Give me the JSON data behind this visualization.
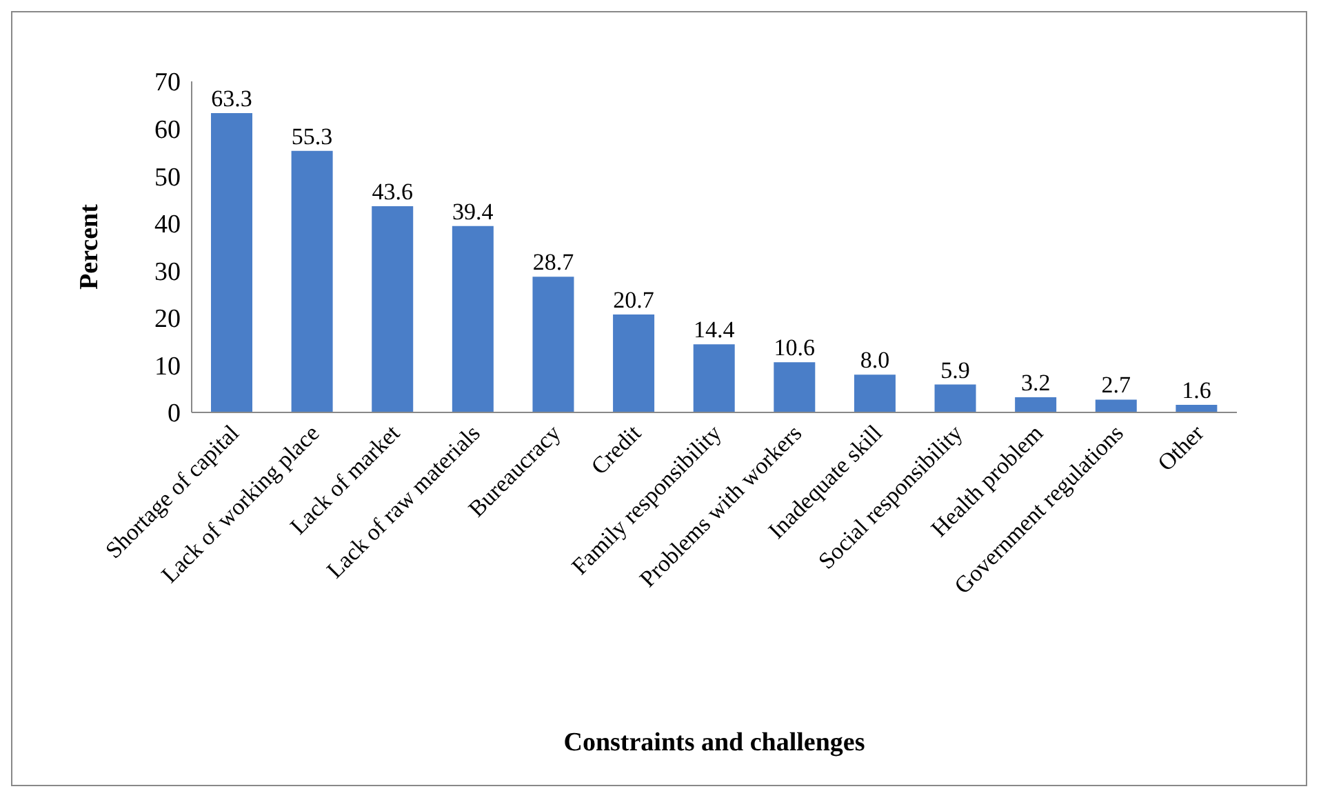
{
  "chart_data": {
    "type": "bar",
    "xlabel": "Constraints and challenges",
    "ylabel": "Percent",
    "categories": [
      "Shortage of capital",
      "Lack of working place",
      "Lack of market",
      "Lack of raw materials",
      "Bureaucracy",
      "Credit",
      "Family responsibility",
      "Problems with workers",
      "Inadequate skill",
      "Social responsibility",
      "Health problem",
      "Government regulations",
      "Other"
    ],
    "values": [
      63.3,
      55.3,
      43.6,
      39.4,
      28.7,
      20.7,
      14.4,
      10.6,
      8.0,
      5.9,
      3.2,
      2.7,
      1.6
    ],
    "value_labels": [
      "63.3",
      "55.3",
      "43.6",
      "39.4",
      "28.7",
      "20.7",
      "14.4",
      "10.6",
      "8.0",
      "5.9",
      "3.2",
      "2.7",
      "1.6"
    ],
    "color": "#4a7ec8",
    "ylim": [
      0,
      70
    ],
    "yticks": [
      0,
      10,
      20,
      30,
      40,
      50,
      60,
      70
    ],
    "grid": false
  }
}
